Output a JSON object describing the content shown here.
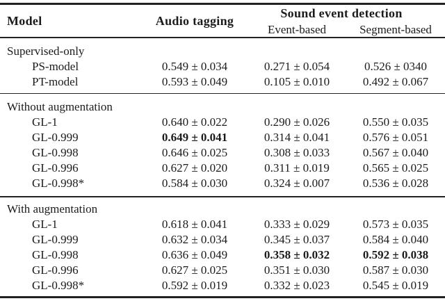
{
  "header": {
    "model": "Model",
    "audio_tagging": "Audio tagging",
    "sed_group": "Sound event detection",
    "event_based": "Event-based",
    "segment_based": "Segment-based"
  },
  "sections": [
    {
      "label": "Supervised-only",
      "rows": [
        {
          "model": "PS-model",
          "cells": [
            {
              "text": "0.549 ± 0.034",
              "bold": false
            },
            {
              "text": "0.271 ± 0.054",
              "bold": false
            },
            {
              "text": "0.526 ± 0340",
              "bold": false
            }
          ]
        },
        {
          "model": "PT-model",
          "cells": [
            {
              "text": "0.593 ± 0.049",
              "bold": false
            },
            {
              "text": "0.105 ± 0.010",
              "bold": false
            },
            {
              "text": "0.492 ± 0.067",
              "bold": false
            }
          ]
        }
      ]
    },
    {
      "label": "Without augmentation",
      "rows": [
        {
          "model": "GL-1",
          "cells": [
            {
              "text": "0.640 ± 0.022",
              "bold": false
            },
            {
              "text": "0.290 ± 0.026",
              "bold": false
            },
            {
              "text": "0.550 ± 0.035",
              "bold": false
            }
          ]
        },
        {
          "model": "GL-0.999",
          "cells": [
            {
              "text": "0.649 ± 0.041",
              "bold": true
            },
            {
              "text": "0.314 ± 0.041",
              "bold": false
            },
            {
              "text": "0.576 ± 0.051",
              "bold": false
            }
          ]
        },
        {
          "model": "GL-0.998",
          "cells": [
            {
              "text": "0.646 ± 0.025",
              "bold": false
            },
            {
              "text": "0.308 ± 0.033",
              "bold": false
            },
            {
              "text": "0.567 ± 0.040",
              "bold": false
            }
          ]
        },
        {
          "model": "GL-0.996",
          "cells": [
            {
              "text": "0.627 ± 0.020",
              "bold": false
            },
            {
              "text": "0.311 ± 0.019",
              "bold": false
            },
            {
              "text": "0.565 ± 0.025",
              "bold": false
            }
          ]
        },
        {
          "model": "GL-0.998*",
          "cells": [
            {
              "text": "0.584 ± 0.030",
              "bold": false
            },
            {
              "text": "0.324 ± 0.007",
              "bold": false
            },
            {
              "text": "0.536 ± 0.028",
              "bold": false
            }
          ]
        }
      ]
    },
    {
      "label": "With augmentation",
      "rows": [
        {
          "model": "GL-1",
          "cells": [
            {
              "text": "0.618 ± 0.041",
              "bold": false
            },
            {
              "text": "0.333 ± 0.029",
              "bold": false
            },
            {
              "text": "0.573 ± 0.035",
              "bold": false
            }
          ]
        },
        {
          "model": "GL-0.999",
          "cells": [
            {
              "text": "0.632 ± 0.034",
              "bold": false
            },
            {
              "text": "0.345 ± 0.037",
              "bold": false
            },
            {
              "text": "0.584 ± 0.040",
              "bold": false
            }
          ]
        },
        {
          "model": "GL-0.998",
          "cells": [
            {
              "text": "0.636 ± 0.049",
              "bold": false
            },
            {
              "text": "0.358 ± 0.032",
              "bold": true
            },
            {
              "text": "0.592 ± 0.038",
              "bold": true
            }
          ]
        },
        {
          "model": "GL-0.996",
          "cells": [
            {
              "text": "0.627 ± 0.025",
              "bold": false
            },
            {
              "text": "0.351 ± 0.030",
              "bold": false
            },
            {
              "text": "0.587 ± 0.030",
              "bold": false
            }
          ]
        },
        {
          "model": "GL-0.998*",
          "cells": [
            {
              "text": "0.592 ± 0.019",
              "bold": false
            },
            {
              "text": "0.332 ± 0.023",
              "bold": false
            },
            {
              "text": "0.545 ± 0.019",
              "bold": false
            }
          ]
        }
      ]
    }
  ]
}
